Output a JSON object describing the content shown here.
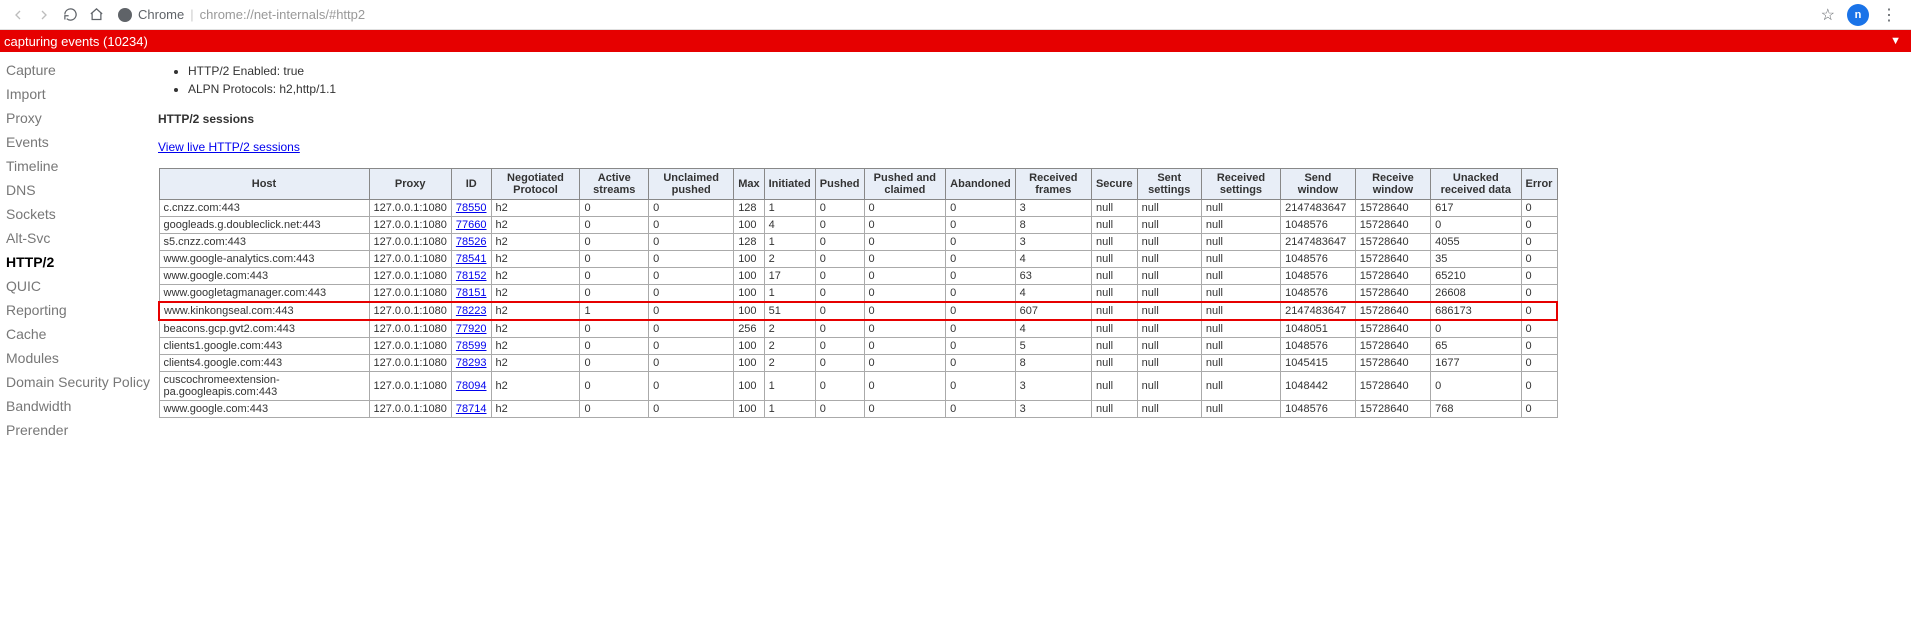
{
  "browser": {
    "chrome_label": "Chrome",
    "url": "chrome://net-internals/#http2",
    "avatar_letter": "n"
  },
  "banner": {
    "text": "capturing events (10234)",
    "arrow": "▼"
  },
  "sidebar": {
    "items": [
      {
        "label": "Capture",
        "active": false
      },
      {
        "label": "Import",
        "active": false
      },
      {
        "label": "Proxy",
        "active": false
      },
      {
        "label": "Events",
        "active": false
      },
      {
        "label": "Timeline",
        "active": false
      },
      {
        "label": "DNS",
        "active": false
      },
      {
        "label": "Sockets",
        "active": false
      },
      {
        "label": "Alt-Svc",
        "active": false
      },
      {
        "label": "HTTP/2",
        "active": true
      },
      {
        "label": "QUIC",
        "active": false
      },
      {
        "label": "Reporting",
        "active": false
      },
      {
        "label": "Cache",
        "active": false
      },
      {
        "label": "Modules",
        "active": false
      },
      {
        "label": "Domain Security Policy",
        "active": false
      },
      {
        "label": "Bandwidth",
        "active": false
      },
      {
        "label": "Prerender",
        "active": false
      }
    ]
  },
  "info": {
    "enabled_label": "HTTP/2 Enabled: true",
    "alpn_label": "ALPN Protocols: h2,http/1.1"
  },
  "sessions_heading": "HTTP/2 sessions",
  "live_link": "View live HTTP/2 sessions",
  "table": {
    "columns": [
      "Host",
      "Proxy",
      "ID",
      "Negotiated Protocol",
      "Active streams",
      "Unclaimed pushed",
      "Max",
      "Initiated",
      "Pushed",
      "Pushed and claimed",
      "Abandoned",
      "Received frames",
      "Secure",
      "Sent settings",
      "Received settings",
      "Send window",
      "Receive window",
      "Unacked received data",
      "Error"
    ],
    "rows": [
      {
        "host": "c.cnzz.com:443",
        "proxy": "127.0.0.1:1080",
        "id": "78550",
        "proto": "h2",
        "active": "0",
        "unclaimed": "0",
        "max": "128",
        "initiated": "1",
        "pushed": "0",
        "pclaimed": "0",
        "abandoned": "0",
        "rframes": "3",
        "secure": "null",
        "sset": "null",
        "rset": "null",
        "swin": "2147483647",
        "rwin": "15728640",
        "unacked": "617",
        "err": "0",
        "hl": false
      },
      {
        "host": "googleads.g.doubleclick.net:443",
        "proxy": "127.0.0.1:1080",
        "id": "77660",
        "proto": "h2",
        "active": "0",
        "unclaimed": "0",
        "max": "100",
        "initiated": "4",
        "pushed": "0",
        "pclaimed": "0",
        "abandoned": "0",
        "rframes": "8",
        "secure": "null",
        "sset": "null",
        "rset": "null",
        "swin": "1048576",
        "rwin": "15728640",
        "unacked": "0",
        "err": "0",
        "hl": false
      },
      {
        "host": "s5.cnzz.com:443",
        "proxy": "127.0.0.1:1080",
        "id": "78526",
        "proto": "h2",
        "active": "0",
        "unclaimed": "0",
        "max": "128",
        "initiated": "1",
        "pushed": "0",
        "pclaimed": "0",
        "abandoned": "0",
        "rframes": "3",
        "secure": "null",
        "sset": "null",
        "rset": "null",
        "swin": "2147483647",
        "rwin": "15728640",
        "unacked": "4055",
        "err": "0",
        "hl": false
      },
      {
        "host": "www.google-analytics.com:443",
        "proxy": "127.0.0.1:1080",
        "id": "78541",
        "proto": "h2",
        "active": "0",
        "unclaimed": "0",
        "max": "100",
        "initiated": "2",
        "pushed": "0",
        "pclaimed": "0",
        "abandoned": "0",
        "rframes": "4",
        "secure": "null",
        "sset": "null",
        "rset": "null",
        "swin": "1048576",
        "rwin": "15728640",
        "unacked": "35",
        "err": "0",
        "hl": false
      },
      {
        "host": "www.google.com:443",
        "proxy": "127.0.0.1:1080",
        "id": "78152",
        "proto": "h2",
        "active": "0",
        "unclaimed": "0",
        "max": "100",
        "initiated": "17",
        "pushed": "0",
        "pclaimed": "0",
        "abandoned": "0",
        "rframes": "63",
        "secure": "null",
        "sset": "null",
        "rset": "null",
        "swin": "1048576",
        "rwin": "15728640",
        "unacked": "65210",
        "err": "0",
        "hl": false
      },
      {
        "host": "www.googletagmanager.com:443",
        "proxy": "127.0.0.1:1080",
        "id": "78151",
        "proto": "h2",
        "active": "0",
        "unclaimed": "0",
        "max": "100",
        "initiated": "1",
        "pushed": "0",
        "pclaimed": "0",
        "abandoned": "0",
        "rframes": "4",
        "secure": "null",
        "sset": "null",
        "rset": "null",
        "swin": "1048576",
        "rwin": "15728640",
        "unacked": "26608",
        "err": "0",
        "hl": false
      },
      {
        "host": "www.kinkongseal.com:443",
        "proxy": "127.0.0.1:1080",
        "id": "78223",
        "proto": "h2",
        "active": "1",
        "unclaimed": "0",
        "max": "100",
        "initiated": "51",
        "pushed": "0",
        "pclaimed": "0",
        "abandoned": "0",
        "rframes": "607",
        "secure": "null",
        "sset": "null",
        "rset": "null",
        "swin": "2147483647",
        "rwin": "15728640",
        "unacked": "686173",
        "err": "0",
        "hl": true
      },
      {
        "host": "beacons.gcp.gvt2.com:443",
        "proxy": "127.0.0.1:1080",
        "id": "77920",
        "proto": "h2",
        "active": "0",
        "unclaimed": "0",
        "max": "256",
        "initiated": "2",
        "pushed": "0",
        "pclaimed": "0",
        "abandoned": "0",
        "rframes": "4",
        "secure": "null",
        "sset": "null",
        "rset": "null",
        "swin": "1048051",
        "rwin": "15728640",
        "unacked": "0",
        "err": "0",
        "hl": false
      },
      {
        "host": "clients1.google.com:443",
        "proxy": "127.0.0.1:1080",
        "id": "78599",
        "proto": "h2",
        "active": "0",
        "unclaimed": "0",
        "max": "100",
        "initiated": "2",
        "pushed": "0",
        "pclaimed": "0",
        "abandoned": "0",
        "rframes": "5",
        "secure": "null",
        "sset": "null",
        "rset": "null",
        "swin": "1048576",
        "rwin": "15728640",
        "unacked": "65",
        "err": "0",
        "hl": false
      },
      {
        "host": "clients4.google.com:443",
        "proxy": "127.0.0.1:1080",
        "id": "78293",
        "proto": "h2",
        "active": "0",
        "unclaimed": "0",
        "max": "100",
        "initiated": "2",
        "pushed": "0",
        "pclaimed": "0",
        "abandoned": "0",
        "rframes": "8",
        "secure": "null",
        "sset": "null",
        "rset": "null",
        "swin": "1045415",
        "rwin": "15728640",
        "unacked": "1677",
        "err": "0",
        "hl": false
      },
      {
        "host": "cuscochromeextension-pa.googleapis.com:443",
        "proxy": "127.0.0.1:1080",
        "id": "78094",
        "proto": "h2",
        "active": "0",
        "unclaimed": "0",
        "max": "100",
        "initiated": "1",
        "pushed": "0",
        "pclaimed": "0",
        "abandoned": "0",
        "rframes": "3",
        "secure": "null",
        "sset": "null",
        "rset": "null",
        "swin": "1048442",
        "rwin": "15728640",
        "unacked": "0",
        "err": "0",
        "hl": false
      },
      {
        "host": "www.google.com:443",
        "proxy": "127.0.0.1:1080",
        "id": "78714",
        "proto": "h2",
        "active": "0",
        "unclaimed": "0",
        "max": "100",
        "initiated": "1",
        "pushed": "0",
        "pclaimed": "0",
        "abandoned": "0",
        "rframes": "3",
        "secure": "null",
        "sset": "null",
        "rset": "null",
        "swin": "1048576",
        "rwin": "15728640",
        "unacked": "768",
        "err": "0",
        "hl": false
      }
    ]
  },
  "colors": {
    "banner": "#e60000",
    "header_bg": "#e8eef7",
    "link": "#0000ee",
    "avatar": "#1a73e8"
  }
}
